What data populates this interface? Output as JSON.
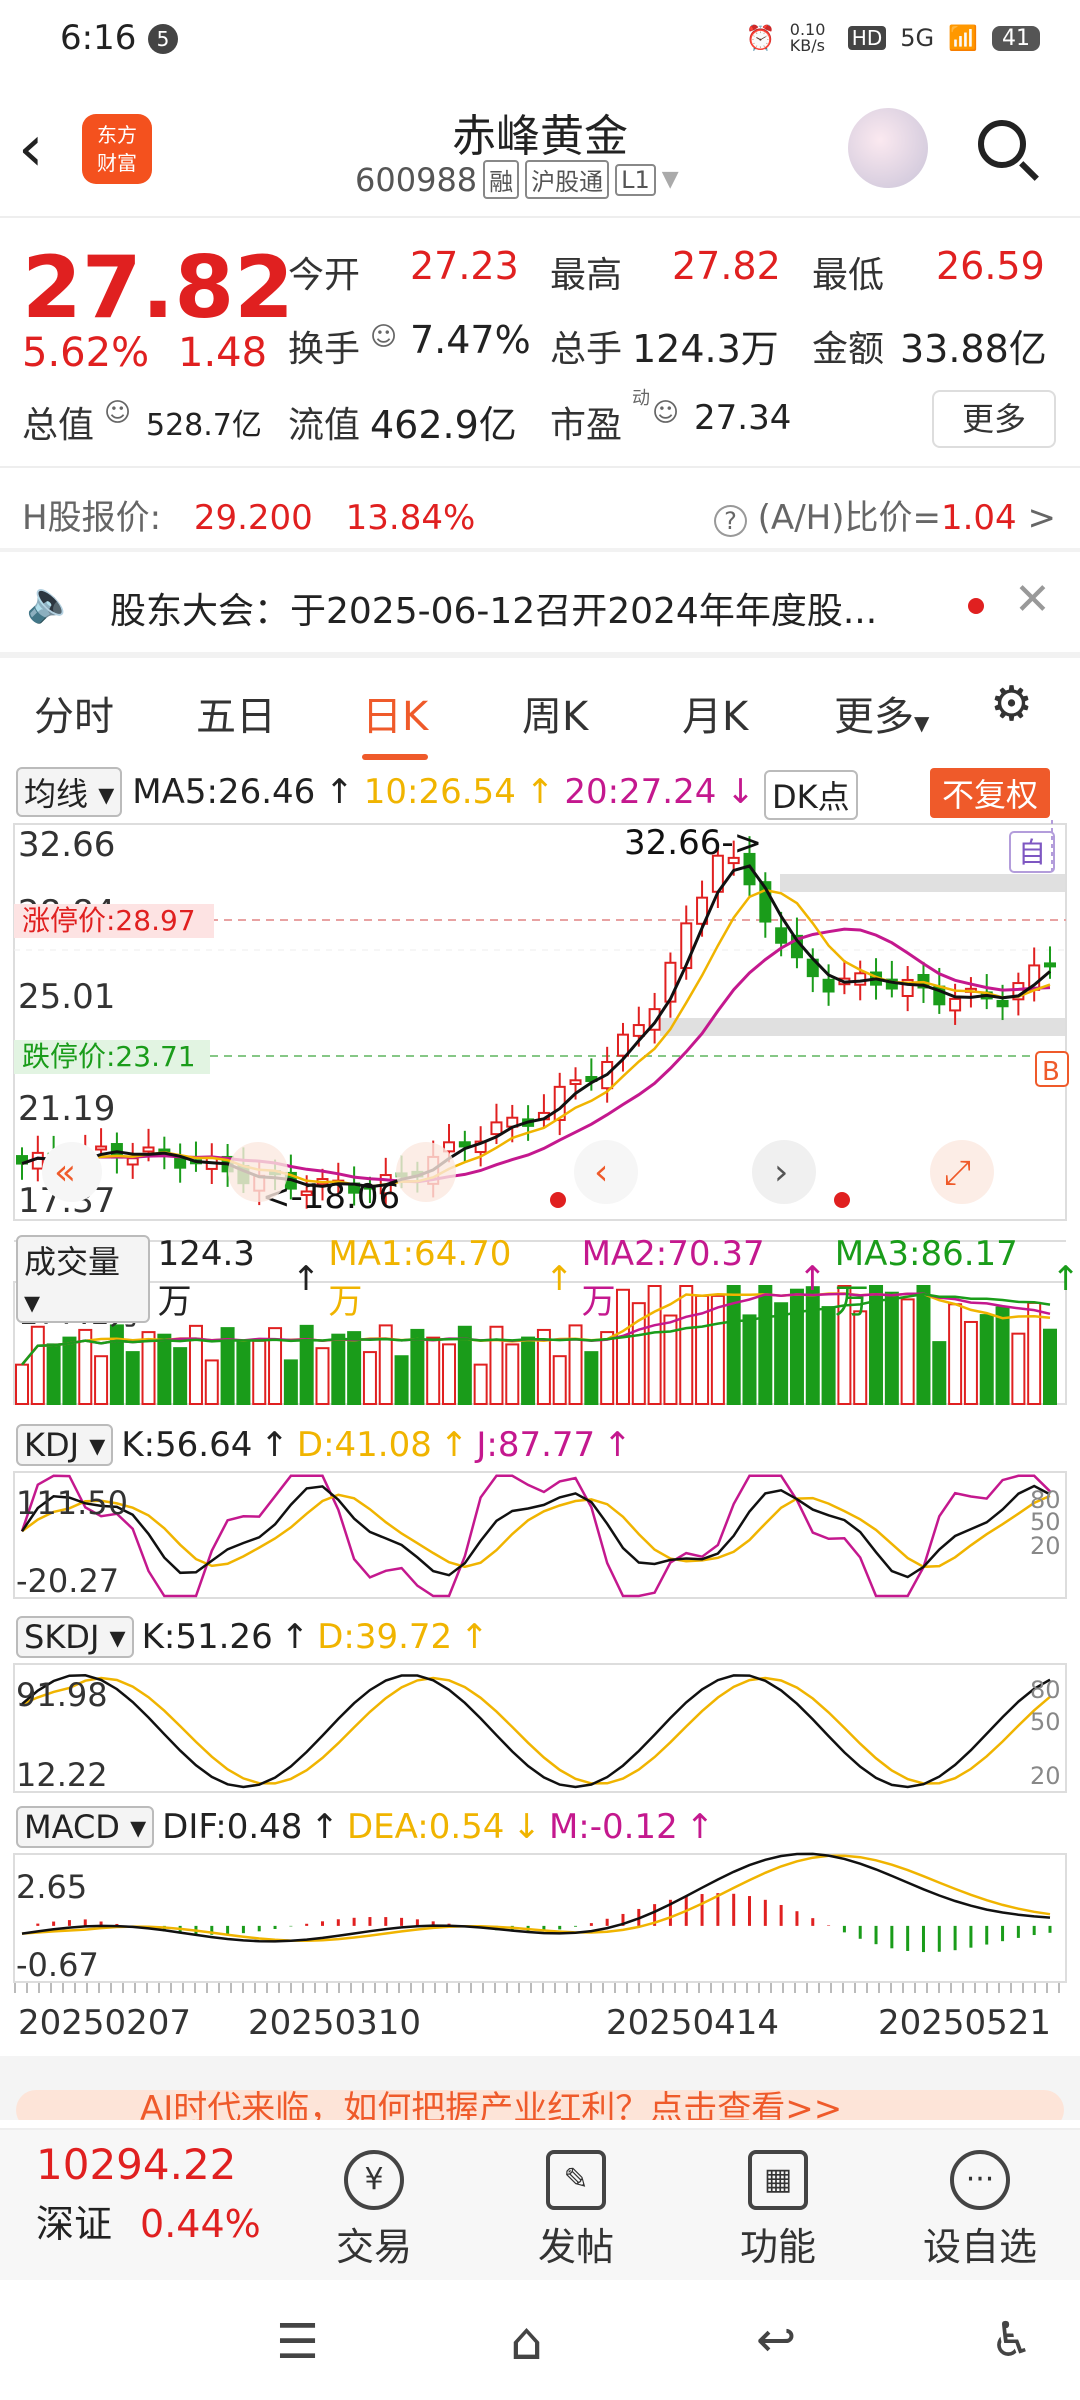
{
  "status_bar": {
    "time": "6:16",
    "notif_count": "5",
    "net_speed": "0.10 KB/s",
    "hd": "HD",
    "signal": "5G",
    "battery": "41"
  },
  "header": {
    "back": "‹",
    "logo_line1": "东方",
    "logo_line2": "财富",
    "title": "赤峰黄金",
    "code": "600988",
    "tags": [
      "融",
      "沪股通",
      "L1"
    ]
  },
  "quote": {
    "price": "27.82",
    "change_pct": "5.62%",
    "change": "1.48",
    "open_label": "今开",
    "open": "27.23",
    "high_label": "最高",
    "high": "27.82",
    "low_label": "最低",
    "low": "26.59",
    "turnover_label": "换手",
    "turnover": "7.47%",
    "volume_label": "总手",
    "volume": "124.3万",
    "amount_label": "金额",
    "amount": "33.88亿",
    "mcap_label": "总值",
    "mcap": "528.7亿",
    "float_label": "流值",
    "float": "462.9亿",
    "pe_label": "市盈",
    "pe_sup": "动",
    "pe": "27.34",
    "more": "更多"
  },
  "hshare": {
    "label": "H股报价:",
    "price": "29.200",
    "premium": "13.84%",
    "ratio_label": "(A/H)比价=",
    "ratio": "1.04"
  },
  "notice": {
    "text": "股东大会：于2025-06-12召开2024年年度股..."
  },
  "tabs": [
    "分时",
    "五日",
    "日K",
    "周K",
    "月K",
    "更多"
  ],
  "active_tab": "日K",
  "kline": {
    "ma_selector": "均线",
    "ma5": "MA5:26.46",
    "ma10": "10:26.54",
    "ma20": "20:27.24",
    "dk": "DK点",
    "fuquan": "不复权",
    "y_high": "32.66",
    "y_mid1": "28.84",
    "y_mid2": "25.01",
    "y_mid3": "21.19",
    "y_low": "17.37",
    "limit_up": "涨停价:28.97",
    "limit_down": "跌停价:23.71",
    "max_label": "32.66->",
    "min_label": "<-18.06",
    "self_tag": "自",
    "b_tag": "B"
  },
  "volume": {
    "selector": "成交量",
    "value": "124.3万",
    "ma1": "MA1:64.70万",
    "ma2": "MA2:70.37万",
    "ma3": "MA3:86.17万",
    "y_top": "177.1万"
  },
  "kdj": {
    "selector": "KDJ",
    "k": "K:56.64",
    "d": "D:41.08",
    "j": "J:87.77",
    "y_top": "111.50",
    "y_bot": "-20.27",
    "lv80": "80",
    "lv50": "50",
    "lv20": "20"
  },
  "skdj": {
    "selector": "SKDJ",
    "k": "K:51.26",
    "d": "D:39.72",
    "y_top": "91.98",
    "y_bot": "12.22",
    "lv80": "80",
    "lv50": "50",
    "lv20": "20"
  },
  "macd": {
    "selector": "MACD",
    "dif": "DIF:0.48",
    "dea": "DEA:0.54",
    "m": "M:-0.12",
    "y_top": "2.65",
    "y_bot": "-0.67"
  },
  "dates": [
    "20250207",
    "20250310",
    "20250414",
    "20250521"
  ],
  "banner": {
    "text": "AI时代来临，如何把握产业红利？点击查看>>"
  },
  "bottom": {
    "index_value": "10294.22",
    "index_name": "深证",
    "index_pct": "0.44%",
    "trade": "交易",
    "post": "发帖",
    "func": "功能",
    "watch": "设自选"
  },
  "colors": {
    "up": "#e02020",
    "down": "#1a9c1a",
    "accent": "#ef5a2a",
    "ma5": "#111111",
    "ma10": "#f0b400",
    "ma20": "#c4188e"
  }
}
